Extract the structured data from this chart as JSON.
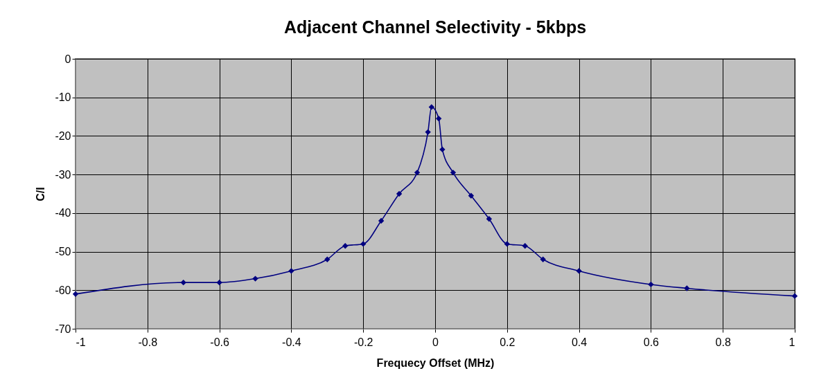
{
  "chart_data": {
    "type": "line",
    "title": "Adjacent Channel Selectivity - 5kbps",
    "xlabel": "Frequecy Offset (MHz)",
    "ylabel": "C/I",
    "x": [
      -1,
      -0.7,
      -0.6,
      -0.5,
      -0.4,
      -0.3,
      -0.25,
      -0.2,
      -0.15,
      -0.1,
      -0.05,
      -0.02,
      -0.01,
      0.01,
      0.02,
      0.05,
      0.1,
      0.15,
      0.2,
      0.25,
      0.3,
      0.4,
      0.6,
      0.7,
      1
    ],
    "series": [
      {
        "color": "#000080",
        "values": [
          -61,
          -58,
          -58,
          -57,
          -55,
          -52,
          -48.5,
          -48,
          -42,
          -35,
          -29.5,
          -19,
          -12.5,
          -15.5,
          -23.5,
          -29.5,
          -35.5,
          -41.5,
          -48,
          -48.5,
          -52,
          -55,
          -58.5,
          -59.5,
          -61.5
        ]
      }
    ],
    "xlim": [
      -1,
      1
    ],
    "xticks": [
      -1,
      -0.8,
      -0.6,
      -0.4,
      -0.2,
      0,
      0.2,
      0.4,
      0.6,
      0.8,
      1
    ],
    "ylim": [
      -70,
      0
    ],
    "yticks": [
      -70,
      -60,
      -50,
      -40,
      -30,
      -20,
      -10,
      0
    ],
    "grid": true,
    "marker": "diamond",
    "line_style": "solid"
  }
}
